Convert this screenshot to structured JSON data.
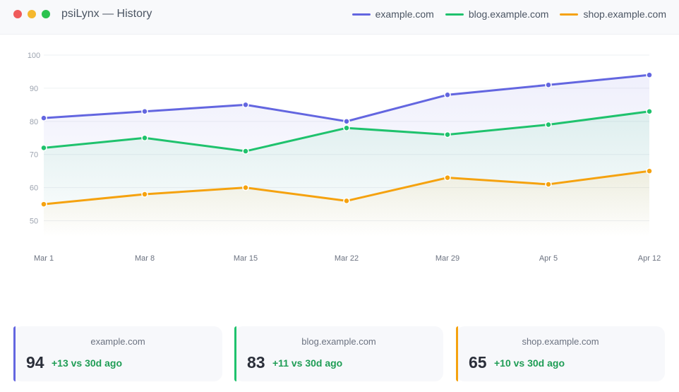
{
  "window": {
    "title": "psiLynx — History"
  },
  "legend": [
    {
      "label": "example.com",
      "color": "#6366e0"
    },
    {
      "label": "blog.example.com",
      "color": "#1fc26d"
    },
    {
      "label": "shop.example.com",
      "color": "#f5a20f"
    }
  ],
  "chart_data": {
    "type": "line",
    "x": [
      "Mar 1",
      "Mar 8",
      "Mar 15",
      "Mar 22",
      "Mar 29",
      "Apr 5",
      "Apr 12"
    ],
    "series": [
      {
        "name": "example.com",
        "color": "#6366e0",
        "values": [
          81,
          83,
          85,
          80,
          88,
          91,
          94
        ]
      },
      {
        "name": "blog.example.com",
        "color": "#1fc26d",
        "values": [
          72,
          75,
          71,
          78,
          76,
          79,
          83
        ]
      },
      {
        "name": "shop.example.com",
        "color": "#f5a20f",
        "values": [
          55,
          58,
          60,
          56,
          63,
          61,
          65
        ]
      }
    ],
    "y_ticks": [
      50,
      60,
      70,
      80,
      90,
      100
    ],
    "ylim": [
      45,
      100
    ],
    "grid": true,
    "area_fill": true
  },
  "cards": [
    {
      "domain": "example.com",
      "value": "94",
      "delta": "+13 vs 30d ago",
      "color": "#6366e0"
    },
    {
      "domain": "blog.example.com",
      "value": "83",
      "delta": "+11 vs 30d ago",
      "color": "#1fc26d"
    },
    {
      "domain": "shop.example.com",
      "value": "65",
      "delta": "+10 vs 30d ago",
      "color": "#f5a20f"
    }
  ]
}
